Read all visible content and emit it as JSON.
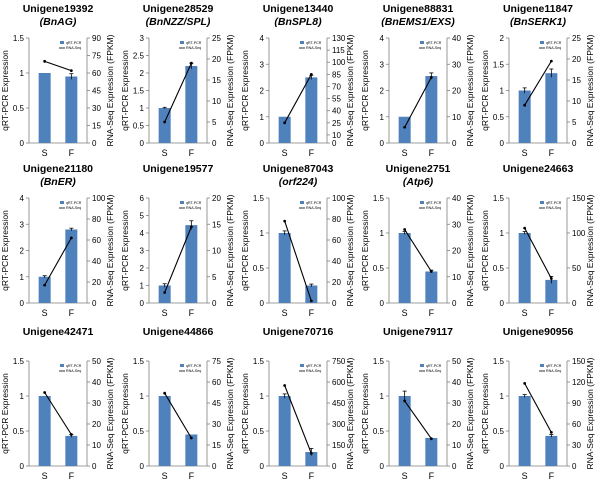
{
  "figure": {
    "type": "bar+line (dual axis)",
    "left_axis_label": "qRT-PCR Expression",
    "right_axis_label": "RNA-Seq Expression (FPKM)",
    "legend_bar": "qRT-PCR",
    "legend_line": "RNA-Seq",
    "categories": [
      "S",
      "F"
    ],
    "colors": {
      "bar": "#4f81bd",
      "line": "#000000",
      "error": "#000000",
      "axis": "#7f7f7f"
    }
  },
  "chart_data": [
    {
      "type": "bar+line",
      "title": "Unigene19392",
      "subtitle": "(BnAG)",
      "categories": [
        "S",
        "F"
      ],
      "qrt_pcr": [
        1.0,
        0.95
      ],
      "qrt_err": [
        0.0,
        0.04
      ],
      "rna_seq": [
        70,
        62
      ],
      "ylim_left": [
        0,
        1.5
      ],
      "yticks_left": [
        "0",
        "0.5",
        "1",
        "1.5"
      ],
      "ylim_right": [
        0,
        90
      ],
      "yticks_right": [
        "0",
        "15",
        "30",
        "45",
        "60",
        "75",
        "90"
      ]
    },
    {
      "type": "bar+line",
      "title": "Unigene28529",
      "subtitle": "(BnNZZ/SPL)",
      "categories": [
        "S",
        "F"
      ],
      "qrt_pcr": [
        1.0,
        2.2
      ],
      "qrt_err": [
        0.02,
        0.08
      ],
      "rna_seq": [
        5,
        19
      ],
      "ylim_left": [
        0,
        3
      ],
      "yticks_left": [
        "0",
        "0.5",
        "1",
        "1.5",
        "2",
        "2.5",
        "3"
      ],
      "ylim_right": [
        0,
        25
      ],
      "yticks_right": [
        "0",
        "5",
        "10",
        "15",
        "20",
        "25"
      ]
    },
    {
      "type": "bar+line",
      "title": "Unigene13440",
      "subtitle": "(BnSPL8)",
      "categories": [
        "S",
        "F"
      ],
      "qrt_pcr": [
        1.0,
        2.5
      ],
      "qrt_err": [
        0.0,
        0.08
      ],
      "rna_seq": [
        25,
        85
      ],
      "ylim_left": [
        0,
        4
      ],
      "yticks_left": [
        "0",
        "1",
        "2",
        "3",
        "4"
      ],
      "ylim_right": [
        0,
        130
      ],
      "yticks_right": [
        "0",
        "10",
        "25",
        "40",
        "55",
        "70",
        "85",
        "100",
        "115",
        "130"
      ]
    },
    {
      "type": "bar+line",
      "title": "Unigene88831",
      "subtitle": "(BnEMS1/EXS)",
      "categories": [
        "S",
        "F"
      ],
      "qrt_pcr": [
        1.0,
        2.55
      ],
      "qrt_err": [
        0.0,
        0.12
      ],
      "rna_seq": [
        6,
        25
      ],
      "ylim_left": [
        0,
        4
      ],
      "yticks_left": [
        "0",
        "1",
        "2",
        "3",
        "4"
      ],
      "ylim_right": [
        0,
        40
      ],
      "yticks_right": [
        "0",
        "10",
        "20",
        "30",
        "40"
      ]
    },
    {
      "type": "bar+line",
      "title": "Unigene11847",
      "subtitle": "(BnSERK1)",
      "categories": [
        "S",
        "F"
      ],
      "qrt_pcr": [
        1.0,
        1.33
      ],
      "qrt_err": [
        0.05,
        0.08
      ],
      "rna_seq": [
        9,
        19.5
      ],
      "ylim_left": [
        0,
        2
      ],
      "yticks_left": [
        "0",
        "0.5",
        "1",
        "1.5",
        "2"
      ],
      "ylim_right": [
        0,
        25
      ],
      "yticks_right": [
        "0",
        "5",
        "10",
        "15",
        "20",
        "25"
      ]
    },
    {
      "type": "bar+line",
      "title": "Unigene21180",
      "subtitle": "(BnER)",
      "categories": [
        "S",
        "F"
      ],
      "qrt_pcr": [
        1.0,
        2.8
      ],
      "qrt_err": [
        0.04,
        0.05
      ],
      "rna_seq": [
        17,
        62
      ],
      "ylim_left": [
        0,
        4
      ],
      "yticks_left": [
        "0",
        "1",
        "2",
        "3",
        "4"
      ],
      "ylim_right": [
        0,
        100
      ],
      "yticks_right": [
        "0",
        "20",
        "40",
        "60",
        "80",
        "100"
      ]
    },
    {
      "type": "bar+line",
      "title": "Unigene19577",
      "subtitle": "",
      "categories": [
        "S",
        "F"
      ],
      "qrt_pcr": [
        1.0,
        4.45
      ],
      "qrt_err": [
        0.1,
        0.25
      ],
      "rna_seq": [
        2,
        14.5
      ],
      "ylim_left": [
        0,
        6
      ],
      "yticks_left": [
        "0",
        "1",
        "2",
        "3",
        "4",
        "5",
        "6"
      ],
      "ylim_right": [
        0,
        20
      ],
      "yticks_right": [
        "0",
        "5",
        "10",
        "15",
        "20"
      ]
    },
    {
      "type": "bar+line",
      "title": "Unigene87043",
      "subtitle": "(orf224)",
      "categories": [
        "S",
        "F"
      ],
      "qrt_pcr": [
        1.0,
        0.25
      ],
      "qrt_err": [
        0.03,
        0.02
      ],
      "rna_seq": [
        78,
        2
      ],
      "ylim_left": [
        0,
        1.5
      ],
      "yticks_left": [
        "0",
        "0.5",
        "1",
        "1.5"
      ],
      "ylim_right": [
        0,
        100
      ],
      "yticks_right": [
        "0",
        "20",
        "40",
        "60",
        "80",
        "100"
      ]
    },
    {
      "type": "bar+line",
      "title": "Unigene2751",
      "subtitle": "(Atp6)",
      "categories": [
        "S",
        "F"
      ],
      "qrt_pcr": [
        1.0,
        0.45
      ],
      "qrt_err": [
        0.02,
        0.02
      ],
      "rna_seq": [
        28,
        12
      ],
      "ylim_left": [
        0,
        1.5
      ],
      "yticks_left": [
        "0",
        "0.5",
        "1",
        "1.5"
      ],
      "ylim_right": [
        0,
        40
      ],
      "yticks_right": [
        "0",
        "10",
        "20",
        "30",
        "40"
      ]
    },
    {
      "type": "bar+line",
      "title": "Unigene24663",
      "subtitle": "",
      "categories": [
        "S",
        "F"
      ],
      "qrt_pcr": [
        1.0,
        0.33
      ],
      "qrt_err": [
        0.02,
        0.05
      ],
      "rna_seq": [
        107,
        35
      ],
      "ylim_left": [
        0,
        1.5
      ],
      "yticks_left": [
        "0",
        "0.5",
        "1",
        "1.5"
      ],
      "ylim_right": [
        0,
        150
      ],
      "yticks_right": [
        "0",
        "50",
        "100",
        "150"
      ]
    },
    {
      "type": "bar+line",
      "title": "Unigene42471",
      "subtitle": "",
      "categories": [
        "S",
        "F"
      ],
      "qrt_pcr": [
        1.0,
        0.43
      ],
      "qrt_err": [
        0.0,
        0.02
      ],
      "rna_seq": [
        35,
        15
      ],
      "ylim_left": [
        0,
        1.5
      ],
      "yticks_left": [
        "0",
        "0.5",
        "1",
        "1.5"
      ],
      "ylim_right": [
        0,
        50
      ],
      "yticks_right": [
        "0",
        "10",
        "20",
        "30",
        "40",
        "50"
      ]
    },
    {
      "type": "bar+line",
      "title": "Unigene44866",
      "subtitle": "",
      "categories": [
        "S",
        "F"
      ],
      "qrt_pcr": [
        1.0,
        0.45
      ],
      "qrt_err": [
        0.0,
        0.0
      ],
      "rna_seq": [
        52,
        20
      ],
      "ylim_left": [
        0,
        1.5
      ],
      "yticks_left": [
        "0",
        "0.5",
        "1",
        "1.5"
      ],
      "ylim_right": [
        0,
        75
      ],
      "yticks_right": [
        "0",
        "15",
        "30",
        "45",
        "60",
        "75"
      ]
    },
    {
      "type": "bar+line",
      "title": "Unigene70716",
      "subtitle": "",
      "categories": [
        "S",
        "F"
      ],
      "qrt_pcr": [
        1.0,
        0.2
      ],
      "qrt_err": [
        0.03,
        0.05
      ],
      "rna_seq": [
        575,
        90
      ],
      "ylim_left": [
        0,
        1.5
      ],
      "yticks_left": [
        "0",
        "0.5",
        "1",
        "1.5"
      ],
      "ylim_right": [
        0,
        750
      ],
      "yticks_right": [
        "0",
        "150",
        "300",
        "450",
        "600",
        "750"
      ]
    },
    {
      "type": "bar+line",
      "title": "Unigene79117",
      "subtitle": "",
      "categories": [
        "S",
        "F"
      ],
      "qrt_pcr": [
        1.0,
        0.4
      ],
      "qrt_err": [
        0.07,
        0.0
      ],
      "rna_seq": [
        31,
        13
      ],
      "ylim_left": [
        0,
        1.5
      ],
      "yticks_left": [
        "0",
        "0.5",
        "1",
        "1.5"
      ],
      "ylim_right": [
        0,
        50
      ],
      "yticks_right": [
        "0",
        "10",
        "20",
        "30",
        "40",
        "50"
      ]
    },
    {
      "type": "bar+line",
      "title": "Unigene90956",
      "subtitle": "",
      "categories": [
        "S",
        "F"
      ],
      "qrt_pcr": [
        1.0,
        0.43
      ],
      "qrt_err": [
        0.02,
        0.02
      ],
      "rna_seq": [
        118,
        48
      ],
      "ylim_left": [
        0,
        1.5
      ],
      "yticks_left": [
        "0",
        "0.5",
        "1",
        "1.5"
      ],
      "ylim_right": [
        0,
        150
      ],
      "yticks_right": [
        "0",
        "30",
        "60",
        "90",
        "120",
        "150"
      ]
    }
  ]
}
